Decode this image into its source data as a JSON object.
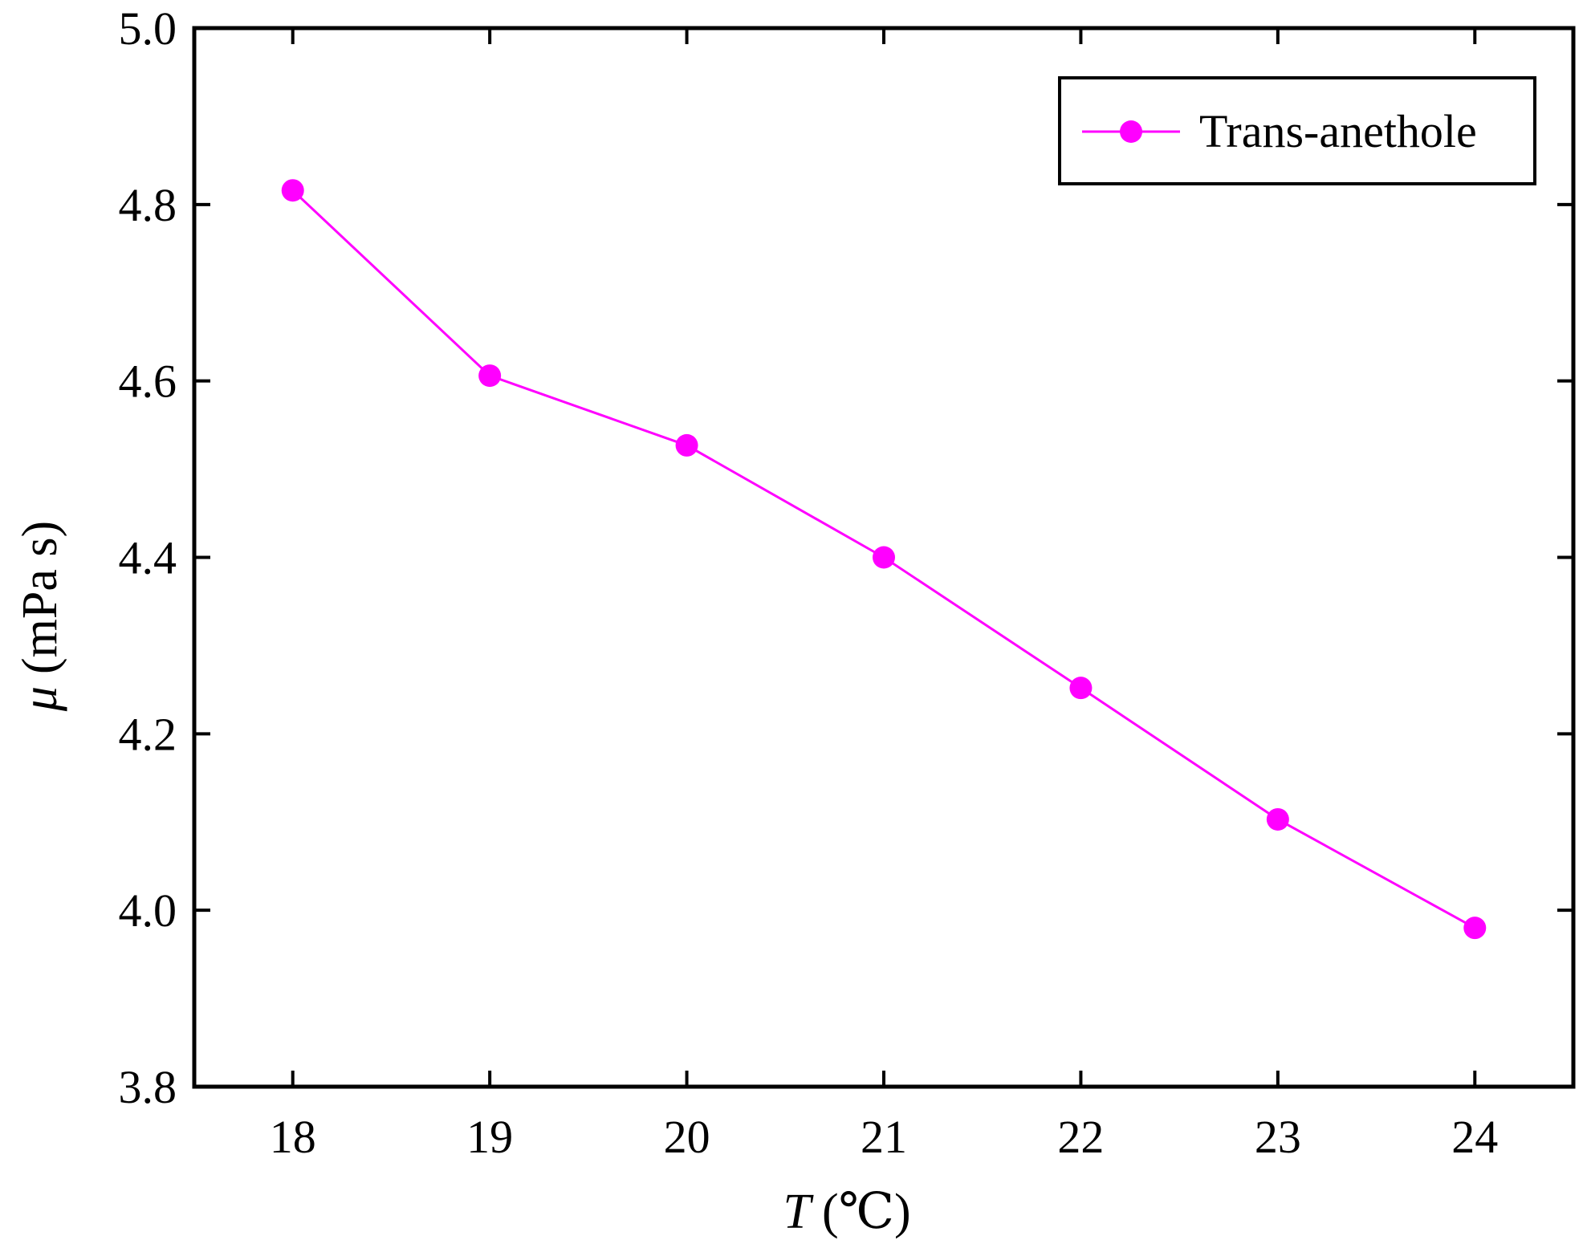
{
  "chart_data": {
    "type": "line",
    "title": "",
    "x": [
      18,
      19,
      20,
      21,
      22,
      23,
      24
    ],
    "x_tick_labels": [
      "18",
      "19",
      "20",
      "21",
      "22",
      "23",
      "24"
    ],
    "y_tick_labels": [
      "3.8",
      "4.0",
      "4.2",
      "4.4",
      "4.6",
      "4.8",
      "5.0"
    ],
    "y_ticks": [
      3.8,
      4.0,
      4.2,
      4.4,
      4.6,
      4.8,
      5.0
    ],
    "xlim": [
      17.5,
      24.5
    ],
    "ylim": [
      3.8,
      5.0
    ],
    "xlabel_symbol": "T",
    "xlabel_unit": "(℃)",
    "ylabel_symbol": "μ",
    "ylabel_unit": "(mPa s)",
    "grid": false,
    "legend_position": "top-right",
    "series": [
      {
        "name": "Trans-anethole",
        "color": "#ff00ff",
        "marker": "circle",
        "values": [
          4.816,
          4.606,
          4.527,
          4.4,
          4.252,
          4.103,
          3.98
        ]
      }
    ]
  }
}
